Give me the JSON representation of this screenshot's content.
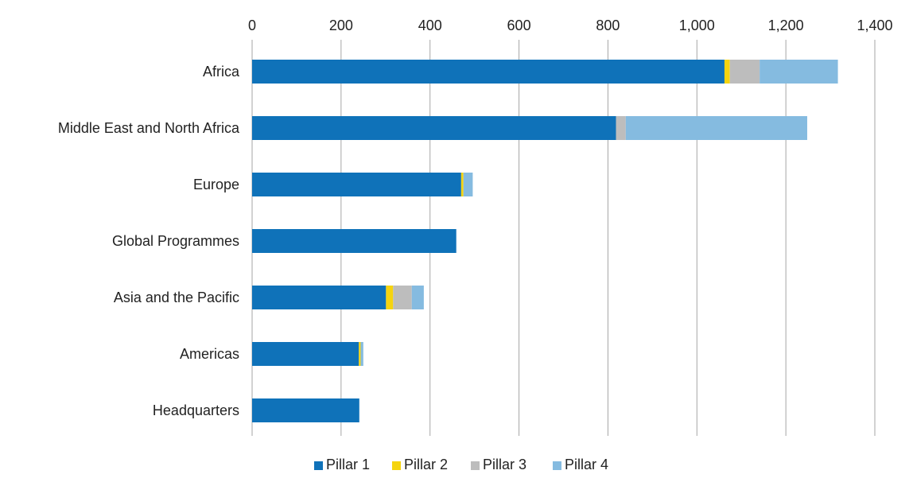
{
  "chart_data": {
    "type": "bar",
    "orientation": "horizontal",
    "stacked": true,
    "title": "",
    "xlabel": "",
    "ylabel": "",
    "xlim": [
      0,
      1400
    ],
    "x_ticks": [
      0,
      200,
      400,
      600,
      800,
      1000,
      1200,
      1400
    ],
    "x_tick_labels": [
      "0",
      "200",
      "400",
      "600",
      "800",
      "1,000",
      "1,200",
      "1,400"
    ],
    "x_axis_position": "top",
    "grid": "vertical",
    "legend_position": "bottom-center",
    "categories": [
      "Africa",
      "Middle East and North Africa",
      "Europe",
      "Global Programmes",
      "Asia and the Pacific",
      "Americas",
      "Headquarters"
    ],
    "series": [
      {
        "name": "Pillar 1",
        "color": "#0f72b9",
        "values": [
          1062,
          818,
          470,
          459,
          301,
          240,
          241
        ]
      },
      {
        "name": "Pillar 2",
        "color": "#f5d40f",
        "values": [
          12,
          0,
          5,
          0,
          16,
          4,
          0
        ]
      },
      {
        "name": "Pillar 3",
        "color": "#bdbdbd",
        "values": [
          67,
          22,
          0,
          0,
          42,
          0,
          0
        ]
      },
      {
        "name": "Pillar 4",
        "color": "#85bbe0",
        "values": [
          176,
          408,
          21,
          0,
          27,
          6,
          0
        ]
      }
    ]
  }
}
